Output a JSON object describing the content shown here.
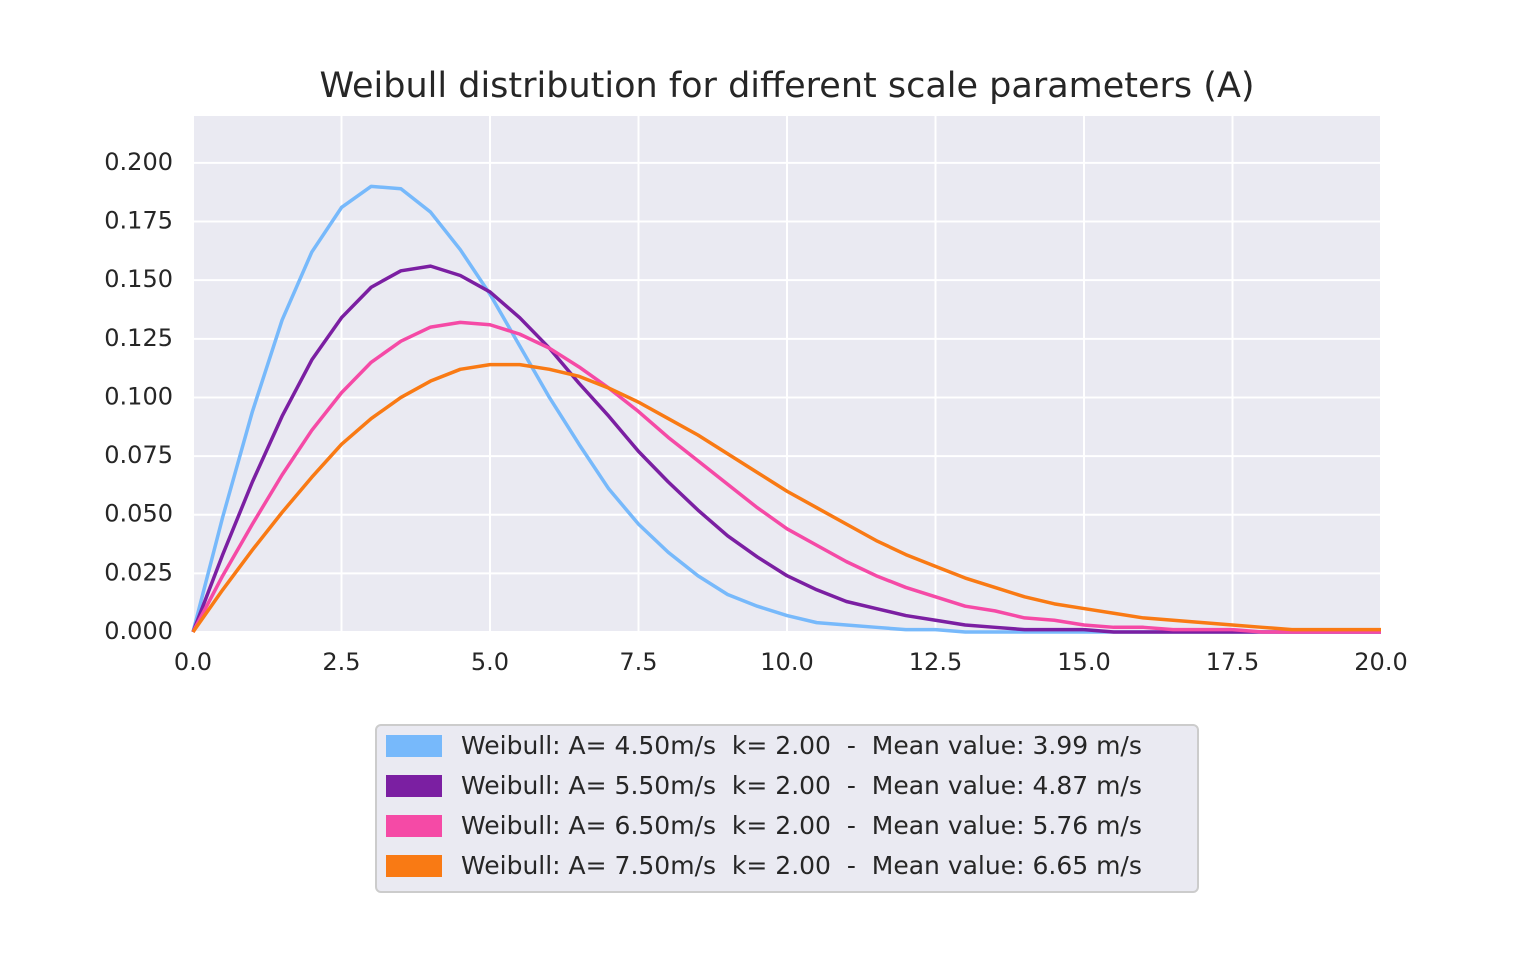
{
  "chart_data": {
    "type": "line",
    "title": "Weibull distribution for different scale parameters (A)",
    "x": [
      0,
      0.5,
      1,
      1.5,
      2,
      2.5,
      3,
      3.5,
      4,
      4.5,
      5,
      5.5,
      6,
      6.5,
      7,
      7.5,
      8,
      8.5,
      9,
      9.5,
      10,
      10.5,
      11,
      11.5,
      12,
      12.5,
      13,
      13.5,
      14,
      14.5,
      15,
      15.5,
      16,
      16.5,
      17,
      17.5,
      18,
      18.5,
      19,
      19.5,
      20
    ],
    "series": [
      {
        "name": "Weibull: A= 4.50m/s  k= 2.00  -  Mean value: 3.99 m/s",
        "color": "#77b9fb",
        "values": [
          0,
          0.049,
          0.094,
          0.133,
          0.162,
          0.181,
          0.19,
          0.189,
          0.179,
          0.163,
          0.144,
          0.122,
          0.1,
          0.08,
          0.061,
          0.046,
          0.034,
          0.024,
          0.016,
          0.011,
          0.007,
          0.004,
          0.003,
          0.002,
          0.001,
          0.001,
          0,
          0,
          0,
          0,
          0,
          0,
          0,
          0,
          0,
          0,
          0,
          0,
          0,
          0,
          0
        ]
      },
      {
        "name": "Weibull: A= 5.50m/s  k= 2.00  -  Mean value: 4.87 m/s",
        "color": "#7b1fa2",
        "values": [
          0,
          0.033,
          0.064,
          0.092,
          0.116,
          0.134,
          0.147,
          0.154,
          0.156,
          0.152,
          0.145,
          0.134,
          0.121,
          0.106,
          0.092,
          0.077,
          0.064,
          0.052,
          0.041,
          0.032,
          0.024,
          0.018,
          0.013,
          0.01,
          0.007,
          0.005,
          0.003,
          0.002,
          0.001,
          0.001,
          0.001,
          0,
          0,
          0,
          0,
          0,
          0,
          0,
          0,
          0,
          0
        ]
      },
      {
        "name": "Weibull: A= 6.50m/s  k= 2.00  -  Mean value: 5.76 m/s",
        "color": "#f54aa6",
        "values": [
          0,
          0.024,
          0.046,
          0.067,
          0.086,
          0.102,
          0.115,
          0.124,
          0.13,
          0.132,
          0.131,
          0.127,
          0.121,
          0.113,
          0.104,
          0.094,
          0.083,
          0.073,
          0.063,
          0.053,
          0.044,
          0.037,
          0.03,
          0.024,
          0.019,
          0.015,
          0.011,
          0.009,
          0.006,
          0.005,
          0.003,
          0.002,
          0.002,
          0.001,
          0.001,
          0.001,
          0,
          0,
          0,
          0,
          0
        ]
      },
      {
        "name": "Weibull: A= 7.50m/s  k= 2.00  -  Mean value: 6.65 m/s",
        "color": "#f97a14",
        "values": [
          0,
          0.018,
          0.035,
          0.051,
          0.066,
          0.08,
          0.091,
          0.1,
          0.107,
          0.112,
          0.114,
          0.114,
          0.112,
          0.109,
          0.104,
          0.098,
          0.091,
          0.084,
          0.076,
          0.068,
          0.06,
          0.053,
          0.046,
          0.039,
          0.033,
          0.028,
          0.023,
          0.019,
          0.015,
          0.012,
          0.01,
          0.008,
          0.006,
          0.005,
          0.004,
          0.003,
          0.002,
          0.001,
          0.001,
          0.001,
          0.001
        ]
      }
    ],
    "xlim": [
      0,
      20
    ],
    "xticks": [
      {
        "value": 0,
        "label": "0.0"
      },
      2.5,
      {
        "value": 5,
        "label": "5.0"
      },
      7.5,
      {
        "value": 10,
        "label": "10.0"
      },
      12.5,
      {
        "value": 15,
        "label": "15.0"
      },
      17.5,
      {
        "value": 20,
        "label": "20.0"
      }
    ],
    "ylim": [
      0,
      0.22
    ],
    "yticks": [
      {
        "value": 0,
        "label": "0.000"
      },
      {
        "value": 0.025,
        "label": "0.025"
      },
      {
        "value": 0.05,
        "label": "0.050"
      },
      {
        "value": 0.075,
        "label": "0.075"
      },
      {
        "value": 0.1,
        "label": "0.100"
      },
      {
        "value": 0.125,
        "label": "0.125"
      },
      {
        "value": 0.15,
        "label": "0.150"
      },
      {
        "value": 0.175,
        "label": "0.175"
      },
      {
        "value": 0.2,
        "label": "0.200"
      }
    ],
    "grid": true,
    "legend": "below"
  }
}
